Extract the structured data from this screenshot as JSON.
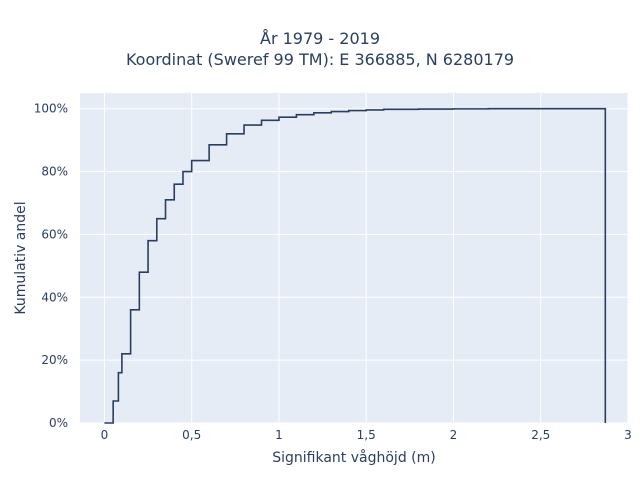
{
  "chart_data": {
    "type": "line",
    "title_lines": [
      "År 1979 - 2019",
      "Koordinat (Sweref 99 TM): E 366885, N 6280179"
    ],
    "xlabel": "Signifikant våghöjd (m)",
    "ylabel": "Kumulativ andel",
    "x_ticks": [
      "0",
      "0,5",
      "1",
      "1,5",
      "2",
      "2,5",
      "3"
    ],
    "y_ticks": [
      "0%",
      "20%",
      "40%",
      "60%",
      "80%",
      "100%"
    ],
    "xlim": [
      -0.14,
      3.0
    ],
    "ylim": [
      0,
      1.05
    ],
    "grid": true,
    "legend": "none",
    "line_color": "#2a3f5f",
    "plot_bg": "#e5ecf6",
    "series": [
      {
        "x": [
          0.0,
          0.02,
          0.05,
          0.08,
          0.1,
          0.15,
          0.2,
          0.25,
          0.3,
          0.35,
          0.4,
          0.45,
          0.5,
          0.6,
          0.7,
          0.8,
          0.9,
          1.0,
          1.1,
          1.2,
          1.3,
          1.4,
          1.5,
          1.6,
          1.8,
          2.0,
          2.2,
          2.5,
          2.7,
          2.87
        ],
        "y": [
          0.0,
          0.0,
          0.07,
          0.16,
          0.22,
          0.36,
          0.48,
          0.58,
          0.65,
          0.71,
          0.76,
          0.8,
          0.835,
          0.885,
          0.92,
          0.948,
          0.963,
          0.973,
          0.981,
          0.987,
          0.991,
          0.994,
          0.996,
          0.998,
          0.999,
          0.9995,
          1.0,
          1.0,
          1.0,
          1.0
        ]
      }
    ]
  }
}
